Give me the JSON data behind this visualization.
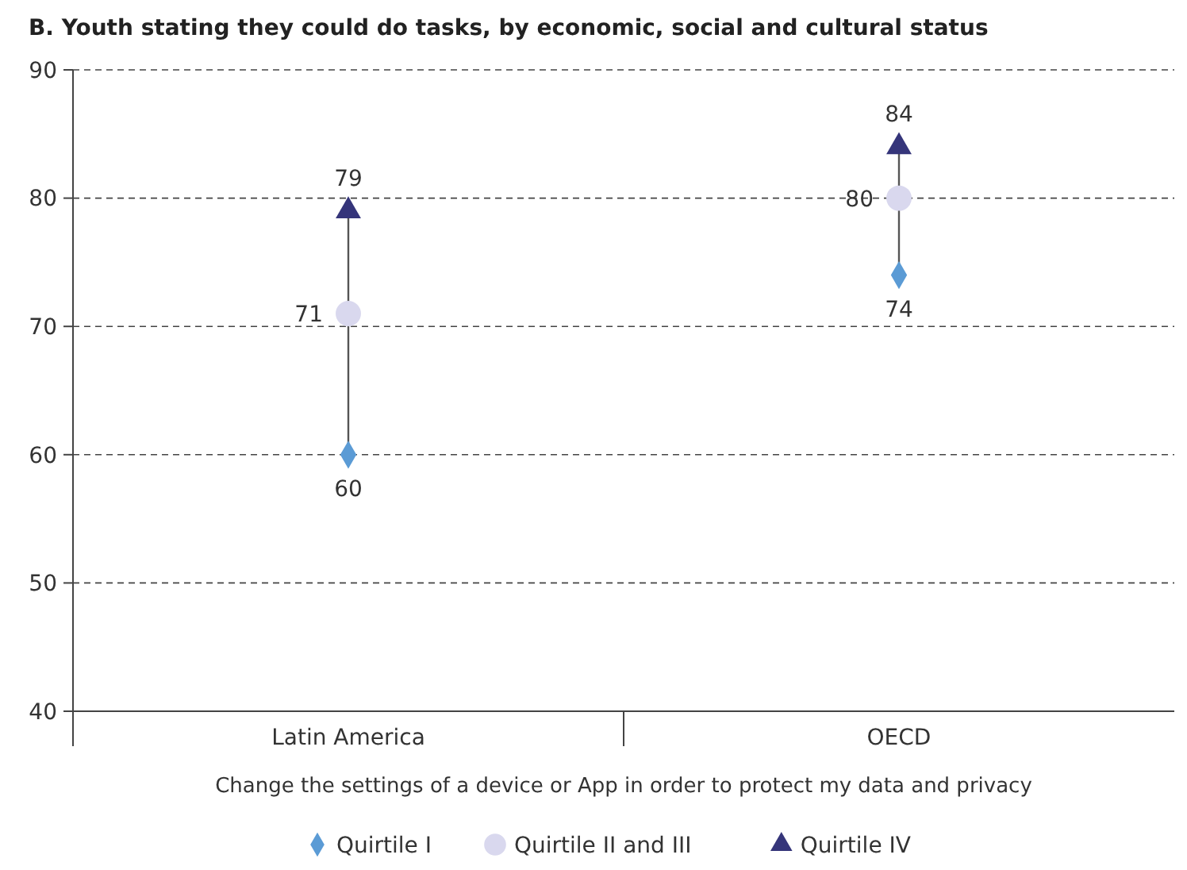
{
  "chart_data": {
    "type": "scatter",
    "title": "B. Youth stating they could do tasks, by economic, social and cultural status",
    "xlabel": "Change the settings of a device or App in order to protect my data and privacy",
    "categories": [
      "Latin America",
      "OECD"
    ],
    "series": [
      {
        "name": "Quirtile I",
        "color": "#5b9bd5",
        "marker": "diamond",
        "values": [
          60,
          74
        ]
      },
      {
        "name": "Quirtile II and III",
        "color": "#d9d8ee",
        "marker": "circle",
        "values": [
          71,
          80
        ]
      },
      {
        "name": "Quirtile IV",
        "color": "#35357a",
        "marker": "triangle",
        "values": [
          79,
          84
        ]
      }
    ],
    "ylim": [
      40,
      90
    ],
    "yticks": [
      40,
      50,
      60,
      70,
      80,
      90
    ],
    "grid": "y",
    "line_style": "dashed",
    "legend": "bottom",
    "data_labels": true
  }
}
